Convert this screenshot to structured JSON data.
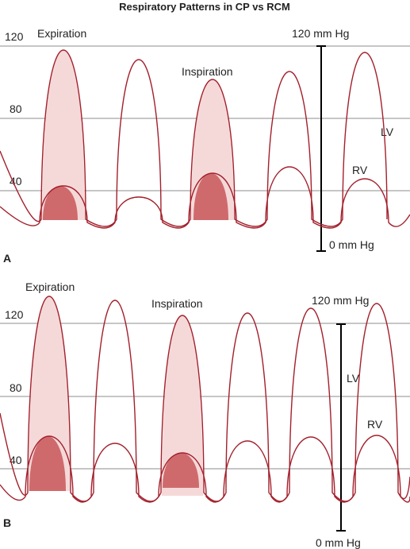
{
  "title": "Respiratory Patterns in CP vs RCM",
  "panels": [
    {
      "label": "A",
      "grid_labels": [
        "120",
        "80",
        "40"
      ],
      "expiration": "Expiration",
      "inspiration": "Inspiration",
      "scale_top": "120 mm Hg",
      "scale_bottom": "0 mm Hg",
      "lv": "LV",
      "rv": "RV"
    },
    {
      "label": "B",
      "grid_labels": [
        "120",
        "80",
        "40"
      ],
      "expiration": "Expiration",
      "inspiration": "Inspiration",
      "scale_top": "120 mm Hg",
      "scale_bottom": "0 mm Hg",
      "lv": "LV",
      "rv": "RV"
    }
  ]
}
